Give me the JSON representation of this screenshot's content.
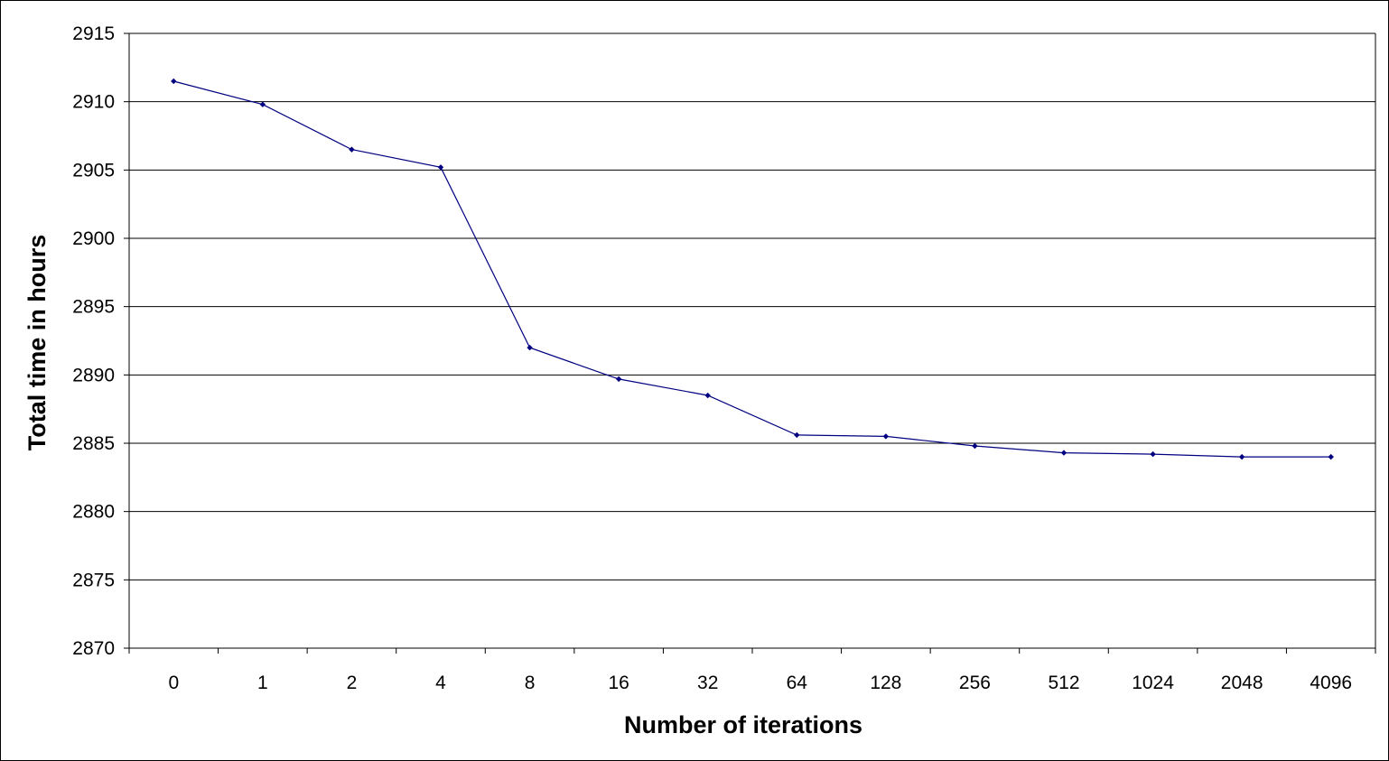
{
  "chart_data": {
    "type": "line",
    "title": "",
    "xlabel": "Number of iterations",
    "ylabel": "Total time in hours",
    "categories": [
      "0",
      "1",
      "2",
      "4",
      "8",
      "16",
      "32",
      "64",
      "128",
      "256",
      "512",
      "1024",
      "2048",
      "4096"
    ],
    "series": [
      {
        "values": [
          2911.5,
          2909.8,
          2906.5,
          2905.2,
          2892.0,
          2889.7,
          2888.5,
          2885.6,
          2885.5,
          2884.8,
          2884.3,
          2884.2,
          2884.0,
          2884.0
        ]
      }
    ],
    "ylim": [
      2870,
      2915
    ],
    "yticks": [
      2870,
      2875,
      2880,
      2885,
      2890,
      2895,
      2900,
      2905,
      2910,
      2915
    ],
    "grid": true,
    "legend": "none",
    "colors": {
      "line": "#000080",
      "marker": "#000080",
      "grid": "#000000",
      "axis": "#000000",
      "background": "#ffffff"
    }
  }
}
